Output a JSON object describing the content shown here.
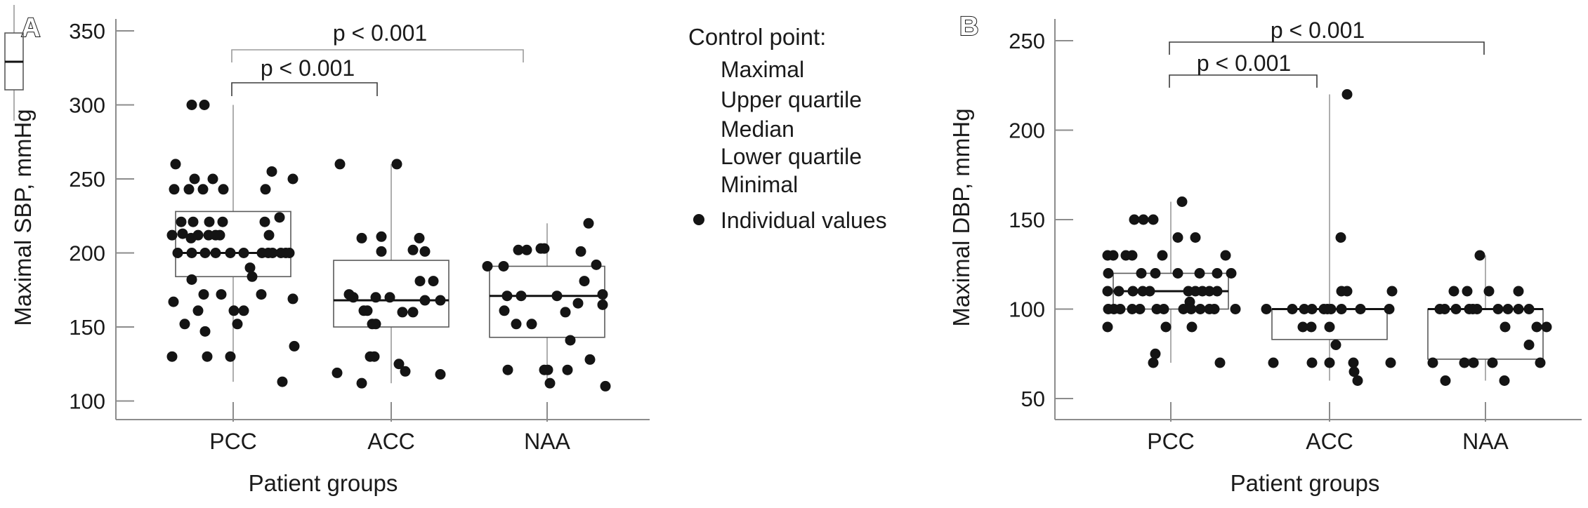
{
  "figure_title": "",
  "colors": {
    "text": "#1a1a1a",
    "axis": "#8c8c8c",
    "whisker": "#9a9a9a",
    "box_border": "#5a5a5a",
    "median": "#111111",
    "point": "#141414",
    "bracket_light": "#9b9b9b",
    "bracket_dark": "#3c3c3c"
  },
  "legend": {
    "title": "Control point:",
    "items": [
      {
        "label": "Maximal"
      },
      {
        "label": "Upper quartile"
      },
      {
        "label": "Median"
      },
      {
        "label": "Lower quartile"
      },
      {
        "label": "Minimal"
      }
    ],
    "point_label": "Individual values"
  },
  "chart_data": [
    {
      "type": "boxplot",
      "panel_label": "A",
      "title": "",
      "xlabel": "Patient groups",
      "ylabel": "Maximal SBP, mmHg",
      "yticks": [
        350,
        300,
        250,
        200,
        150,
        100
      ],
      "ylim": [
        87,
        358
      ],
      "grid": false,
      "categories": [
        "PCC",
        "ACC",
        "NAA"
      ],
      "boxes": [
        {
          "category": "PCC",
          "min": 113,
          "q1": 184,
          "median": 200,
          "q3": 228,
          "max": 300
        },
        {
          "category": "ACC",
          "min": 112,
          "q1": 150,
          "median": 168,
          "q3": 195,
          "max": 260
        },
        {
          "category": "NAA",
          "min": 110,
          "q1": 143,
          "median": 171,
          "q3": 191,
          "max": 220
        }
      ],
      "points": [
        [
          [
            -59,
            300
          ],
          [
            -41,
            300
          ],
          [
            -82,
            260
          ],
          [
            55,
            255
          ],
          [
            -55,
            250
          ],
          [
            -29,
            250
          ],
          [
            85,
            250
          ],
          [
            -84,
            243
          ],
          [
            -63,
            243
          ],
          [
            -43,
            243
          ],
          [
            -14,
            243
          ],
          [
            46,
            243
          ],
          [
            -74,
            221
          ],
          [
            -57,
            221
          ],
          [
            -34,
            221
          ],
          [
            -15,
            221
          ],
          [
            45,
            221
          ],
          [
            66,
            224
          ],
          [
            -87,
            212
          ],
          [
            -72,
            213
          ],
          [
            -60,
            210
          ],
          [
            -50,
            212
          ],
          [
            -35,
            212
          ],
          [
            -25,
            212
          ],
          [
            -19,
            212
          ],
          [
            51,
            212
          ],
          [
            -79,
            200
          ],
          [
            -59,
            200
          ],
          [
            -40,
            200
          ],
          [
            -25,
            200
          ],
          [
            -4,
            200
          ],
          [
            15,
            200
          ],
          [
            41,
            200
          ],
          [
            50,
            200
          ],
          [
            56,
            200
          ],
          [
            68,
            200
          ],
          [
            75,
            200
          ],
          [
            80,
            200
          ],
          [
            24,
            190
          ],
          [
            27,
            184
          ],
          [
            -59,
            182
          ],
          [
            -42,
            172
          ],
          [
            -17,
            172
          ],
          [
            40,
            172
          ],
          [
            85,
            169
          ],
          [
            -85,
            167
          ],
          [
            -50,
            161
          ],
          [
            1,
            161
          ],
          [
            15,
            161
          ],
          [
            -69,
            152
          ],
          [
            6,
            152
          ],
          [
            -40,
            147
          ],
          [
            -87,
            130
          ],
          [
            -37,
            130
          ],
          [
            -4,
            130
          ],
          [
            87,
            137
          ],
          [
            70,
            113
          ]
        ],
        [
          [
            -73,
            260
          ],
          [
            8,
            260
          ],
          [
            -42,
            210
          ],
          [
            -14,
            211
          ],
          [
            40,
            210
          ],
          [
            -14,
            201
          ],
          [
            31,
            202
          ],
          [
            48,
            201
          ],
          [
            41,
            181
          ],
          [
            60,
            181
          ],
          [
            -60,
            172
          ],
          [
            -54,
            170
          ],
          [
            -22,
            170
          ],
          [
            -2,
            170
          ],
          [
            48,
            168
          ],
          [
            70,
            168
          ],
          [
            -39,
            161
          ],
          [
            -34,
            161
          ],
          [
            16,
            160
          ],
          [
            31,
            160
          ],
          [
            -27,
            152
          ],
          [
            -22,
            152
          ],
          [
            -30,
            130
          ],
          [
            -24,
            130
          ],
          [
            11,
            125
          ],
          [
            -77,
            119
          ],
          [
            20,
            120
          ],
          [
            70,
            118
          ],
          [
            -42,
            112
          ]
        ],
        [
          [
            59,
            220
          ],
          [
            -41,
            202
          ],
          [
            -29,
            202
          ],
          [
            -9,
            203
          ],
          [
            -4,
            203
          ],
          [
            48,
            201
          ],
          [
            -85,
            191
          ],
          [
            -62,
            191
          ],
          [
            70,
            192
          ],
          [
            53,
            181
          ],
          [
            -57,
            171
          ],
          [
            -37,
            171
          ],
          [
            14,
            171
          ],
          [
            79,
            172
          ],
          [
            44,
            166
          ],
          [
            79,
            165
          ],
          [
            -61,
            161
          ],
          [
            26,
            160
          ],
          [
            -44,
            152
          ],
          [
            -22,
            152
          ],
          [
            33,
            141
          ],
          [
            61,
            128
          ],
          [
            -56,
            121
          ],
          [
            -4,
            121
          ],
          [
            1,
            121
          ],
          [
            29,
            121
          ],
          [
            4,
            112
          ],
          [
            83,
            110
          ]
        ]
      ],
      "significance": [
        {
          "groups": [
            "PCC",
            "NAA"
          ],
          "label": "p < 0.001"
        },
        {
          "groups": [
            "PCC",
            "ACC"
          ],
          "label": "p < 0.001"
        }
      ]
    },
    {
      "type": "boxplot",
      "panel_label": "B",
      "title": "",
      "xlabel": "Patient groups",
      "ylabel": "Maximal DBP, mmHg",
      "yticks": [
        250,
        200,
        150,
        100,
        50
      ],
      "ylim": [
        38,
        262
      ],
      "grid": false,
      "categories": [
        "PCC",
        "ACC",
        "NAA"
      ],
      "boxes": [
        {
          "category": "PCC",
          "min": 70,
          "q1": 100,
          "median": 110,
          "q3": 120,
          "max": 160
        },
        {
          "category": "ACC",
          "min": 60,
          "q1": 83,
          "median": 100,
          "q3": 100,
          "max": 220
        },
        {
          "category": "NAA",
          "min": 60,
          "q1": 72,
          "median": 100,
          "q3": 100,
          "max": 130
        }
      ],
      "points": [
        [
          [
            16,
            160
          ],
          [
            -52,
            150
          ],
          [
            -39,
            150
          ],
          [
            -25,
            150
          ],
          [
            10,
            140
          ],
          [
            35,
            140
          ],
          [
            -90,
            130
          ],
          [
            -82,
            130
          ],
          [
            -64,
            130
          ],
          [
            -55,
            130
          ],
          [
            -12,
            130
          ],
          [
            78,
            130
          ],
          [
            -89,
            120
          ],
          [
            -42,
            120
          ],
          [
            -22,
            120
          ],
          [
            10,
            120
          ],
          [
            41,
            120
          ],
          [
            66,
            120
          ],
          [
            86,
            120
          ],
          [
            -90,
            110
          ],
          [
            -74,
            110
          ],
          [
            -54,
            110
          ],
          [
            -40,
            110
          ],
          [
            -30,
            110
          ],
          [
            25,
            110
          ],
          [
            35,
            110
          ],
          [
            45,
            110
          ],
          [
            55,
            110
          ],
          [
            66,
            110
          ],
          [
            27,
            104
          ],
          [
            -89,
            100
          ],
          [
            -81,
            100
          ],
          [
            -72,
            100
          ],
          [
            -55,
            100
          ],
          [
            -44,
            100
          ],
          [
            -20,
            100
          ],
          [
            -10,
            100
          ],
          [
            18,
            100
          ],
          [
            29,
            100
          ],
          [
            42,
            100
          ],
          [
            55,
            100
          ],
          [
            62,
            100
          ],
          [
            92,
            100
          ],
          [
            -90,
            90
          ],
          [
            -7,
            90
          ],
          [
            30,
            90
          ],
          [
            -22,
            75
          ],
          [
            -25,
            70
          ],
          [
            70,
            70
          ]
        ],
        [
          [
            25,
            220
          ],
          [
            16,
            140
          ],
          [
            17,
            110
          ],
          [
            25,
            110
          ],
          [
            89,
            110
          ],
          [
            -90,
            100
          ],
          [
            -53,
            100
          ],
          [
            -36,
            100
          ],
          [
            -25,
            100
          ],
          [
            -8,
            100
          ],
          [
            -3,
            100
          ],
          [
            2,
            100
          ],
          [
            17,
            100
          ],
          [
            44,
            100
          ],
          [
            85,
            100
          ],
          [
            -38,
            90
          ],
          [
            -26,
            90
          ],
          [
            0,
            90
          ],
          [
            9,
            80
          ],
          [
            -80,
            70
          ],
          [
            -25,
            70
          ],
          [
            0,
            70
          ],
          [
            34,
            70
          ],
          [
            87,
            70
          ],
          [
            35,
            65
          ],
          [
            40,
            60
          ]
        ],
        [
          [
            -8,
            130
          ],
          [
            -45,
            110
          ],
          [
            -26,
            110
          ],
          [
            5,
            110
          ],
          [
            47,
            110
          ],
          [
            -65,
            100
          ],
          [
            -58,
            100
          ],
          [
            -42,
            100
          ],
          [
            -23,
            100
          ],
          [
            -18,
            100
          ],
          [
            -12,
            100
          ],
          [
            18,
            100
          ],
          [
            32,
            100
          ],
          [
            47,
            100
          ],
          [
            62,
            100
          ],
          [
            28,
            90
          ],
          [
            73,
            90
          ],
          [
            87,
            90
          ],
          [
            62,
            80
          ],
          [
            -75,
            70
          ],
          [
            -30,
            70
          ],
          [
            -17,
            70
          ],
          [
            10,
            70
          ],
          [
            78,
            70
          ],
          [
            -57,
            60
          ],
          [
            27,
            60
          ]
        ]
      ],
      "significance": [
        {
          "groups": [
            "PCC",
            "NAA"
          ],
          "label": "p < 0.001"
        },
        {
          "groups": [
            "PCC",
            "ACC"
          ],
          "label": "p < 0.001"
        }
      ]
    }
  ]
}
